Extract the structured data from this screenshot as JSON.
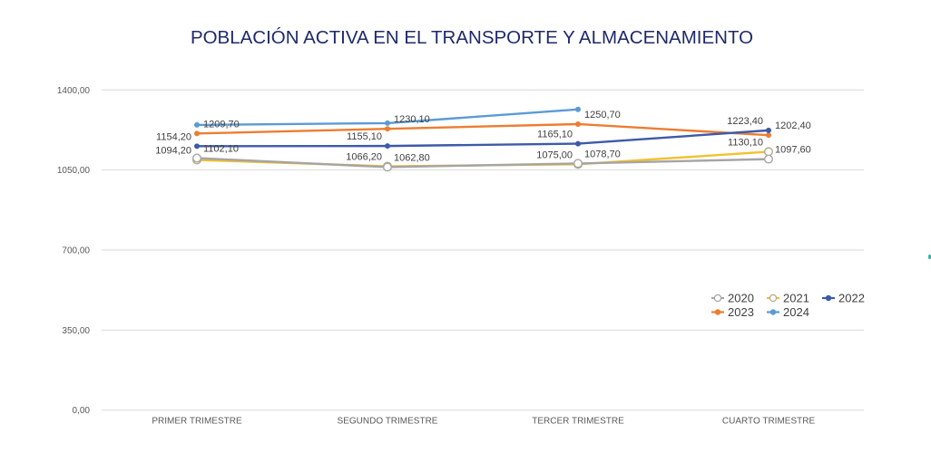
{
  "chart_data": {
    "type": "line",
    "title": "POBLACIÓN ACTIVA EN EL TRANSPORTE Y ALMACENAMIENTO",
    "xlabel": "",
    "ylabel": "",
    "categories": [
      "PRIMER TRIMESTRE",
      "SEGUNDO TRIMESTRE",
      "TERCER TRIMESTRE",
      "CUARTO TRIMESTRE"
    ],
    "ylim": [
      0,
      1400
    ],
    "yticks": [
      0,
      350,
      700,
      1050,
      1400
    ],
    "ytick_labels": [
      "0,00",
      "350,00",
      "700,00",
      "1050,00",
      "1400,00"
    ],
    "grid": true,
    "legend_position": "right",
    "decimal_separator": ",",
    "series": [
      {
        "name": "2020",
        "color": "#a5a5a5",
        "marker": "hollow",
        "data_labels": true,
        "values": [
          1102.1,
          1062.8,
          1078.7,
          1097.6
        ]
      },
      {
        "name": "2021",
        "color": "#f2c12e",
        "marker": "hollow",
        "data_labels": true,
        "values": [
          1094.2,
          1066.2,
          1075.0,
          1130.1
        ]
      },
      {
        "name": "2022",
        "color": "#3d5aa8",
        "marker": "filled",
        "data_labels": true,
        "values": [
          1154.2,
          1155.1,
          1165.1,
          1223.4
        ]
      },
      {
        "name": "2023",
        "color": "#ed7d31",
        "marker": "filled",
        "data_labels": true,
        "values": [
          1209.7,
          1230.1,
          1250.7,
          1202.4
        ]
      },
      {
        "name": "2024",
        "color": "#5b9bd5",
        "marker": "filled",
        "data_labels": false,
        "values": [
          1247,
          1255,
          1315,
          null
        ]
      }
    ]
  }
}
